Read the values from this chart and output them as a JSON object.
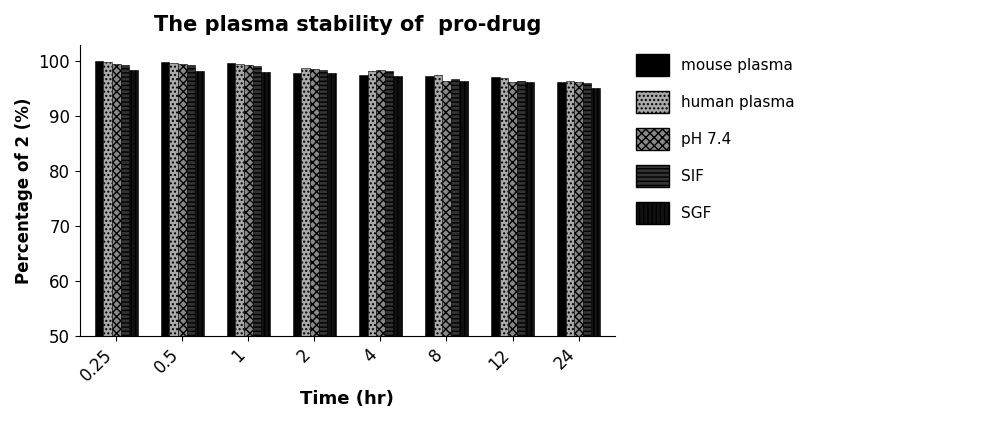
{
  "title": "The plasma stability of  pro-drug",
  "xlabel": "Time (hr)",
  "ylabel": "Percentage of 2 (%)",
  "time_labels": [
    "0.25",
    "0.5",
    "1",
    "2",
    "4",
    "8",
    "12",
    "24"
  ],
  "series": {
    "mouse plasma": [
      100.0,
      99.8,
      99.7,
      97.8,
      97.5,
      97.3,
      97.2,
      96.2
    ],
    "human plasma": [
      99.8,
      99.7,
      99.5,
      98.8,
      98.2,
      97.5,
      97.0,
      96.5
    ],
    "pH 7.4": [
      99.5,
      99.5,
      99.3,
      98.6,
      98.5,
      96.5,
      96.2,
      96.2
    ],
    "SIF": [
      99.3,
      99.3,
      99.1,
      98.5,
      98.3,
      96.8,
      96.5,
      96.0
    ],
    "SGF": [
      98.5,
      98.3,
      98.0,
      97.8,
      97.3,
      96.5,
      96.2,
      95.2
    ]
  },
  "ylim": [
    50,
    103
  ],
  "yticks": [
    50,
    60,
    70,
    80,
    90,
    100
  ],
  "bar_width": 0.13,
  "legend_labels": [
    "mouse plasma",
    "human plasma",
    "pH 7.4",
    "SIF",
    "SGF"
  ],
  "hatch_patterns": [
    "",
    "....",
    "xxxx",
    "----",
    "||||"
  ],
  "face_colors": [
    "#000000",
    "#aaaaaa",
    "#888888",
    "#333333",
    "#111111"
  ],
  "edge_colors": [
    "#000000",
    "#000000",
    "#000000",
    "#000000",
    "#000000"
  ],
  "figsize": [
    10.0,
    4.23
  ],
  "dpi": 100
}
